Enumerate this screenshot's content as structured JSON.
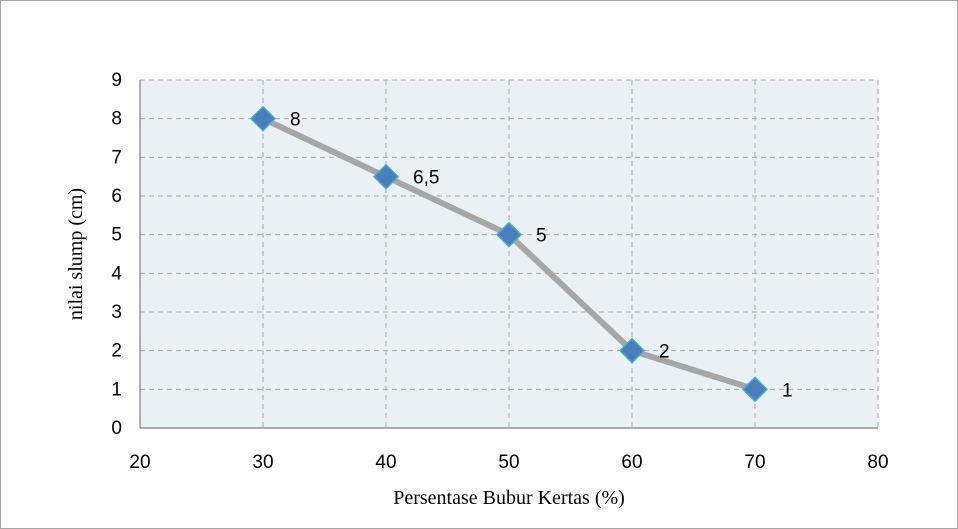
{
  "chart_data": {
    "type": "line",
    "title": "",
    "xlabel": "Persentase Bubur Kertas (%)",
    "ylabel": "nilai slump (cm)",
    "xlim": [
      20,
      80
    ],
    "ylim": [
      0,
      9
    ],
    "x_ticks": [
      "20",
      "30",
      "40",
      "50",
      "60",
      "70",
      "80"
    ],
    "y_ticks": [
      "0",
      "1",
      "2",
      "3",
      "4",
      "5",
      "6",
      "7",
      "8",
      "9"
    ],
    "grid": true,
    "legend": "none",
    "series": [
      {
        "x": [
          30,
          40,
          50,
          60,
          70
        ],
        "values": [
          8,
          6.5,
          5,
          2,
          1
        ],
        "labels": [
          "8",
          "6,5",
          "5",
          "2",
          "1"
        ]
      }
    ],
    "colors": {
      "plot_background": "#e9f1f5",
      "grid": "#a6a6a6",
      "axis": "#7f7f7f",
      "line": "#a6a6a6",
      "marker_fill": "#4a7ebb",
      "marker_stroke": "#4bacc6"
    },
    "marker": "diamond"
  }
}
